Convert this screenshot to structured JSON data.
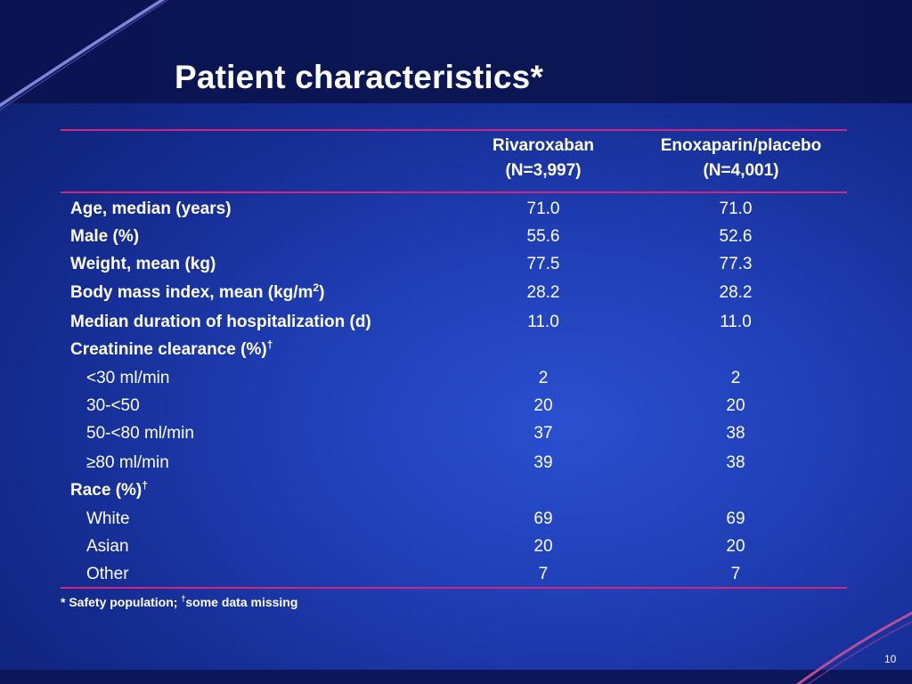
{
  "slide": {
    "title": "Patient characteristics*",
    "page_number": "10"
  },
  "colors": {
    "background": "#1f3eb4",
    "top_band": "#0a1452",
    "rule": "#d4257c",
    "accent_curve": "#8f8fe6",
    "text": "#ffffff"
  },
  "table": {
    "columns": [
      {
        "line1": "Rivaroxaban",
        "line2": "(N=3,997)"
      },
      {
        "line1": "Enoxaparin/placebo",
        "line2": "(N=4,001)"
      }
    ],
    "rows": [
      {
        "label": "Age, median (years)",
        "bold": true,
        "v1": "71.0",
        "v2": "71.0"
      },
      {
        "label": "Male (%)",
        "bold": true,
        "v1": "55.6",
        "v2": "52.6"
      },
      {
        "label": "Weight, mean (kg)",
        "bold": true,
        "v1": "77.5",
        "v2": "77.3"
      },
      {
        "label": "Body mass index, mean (kg/m",
        "sup": "2",
        "after": ")",
        "bold": true,
        "v1": "28.2",
        "v2": "28.2"
      },
      {
        "label": "Median duration of hospitalization (d)",
        "bold": true,
        "v1": "11.0",
        "v2": "11.0"
      },
      {
        "label": "Creatinine clearance (%)",
        "sup": "†",
        "bold": true,
        "v1": "",
        "v2": ""
      },
      {
        "label": "<30 ml/min",
        "indent": true,
        "v1": "2",
        "v2": "2"
      },
      {
        "label": "30-<50",
        "indent": true,
        "v1": "20",
        "v2": "20"
      },
      {
        "label": "50-<80 ml/min",
        "indent": true,
        "v1": "37",
        "v2": "38"
      },
      {
        "label": "≥80 ml/min",
        "indent": true,
        "v1": "39",
        "v2": "38"
      },
      {
        "label": "Race (%)",
        "sup": "†",
        "bold": true,
        "v1": "",
        "v2": ""
      },
      {
        "label": "White",
        "indent": true,
        "v1": "69",
        "v2": "69"
      },
      {
        "label": "Asian",
        "indent": true,
        "v1": "20",
        "v2": "20"
      },
      {
        "label": "Other",
        "indent": true,
        "v1": "7",
        "v2": "7"
      }
    ]
  },
  "footnote": {
    "part1": "* Safety population; ",
    "sup": "†",
    "part2": "some data missing"
  }
}
